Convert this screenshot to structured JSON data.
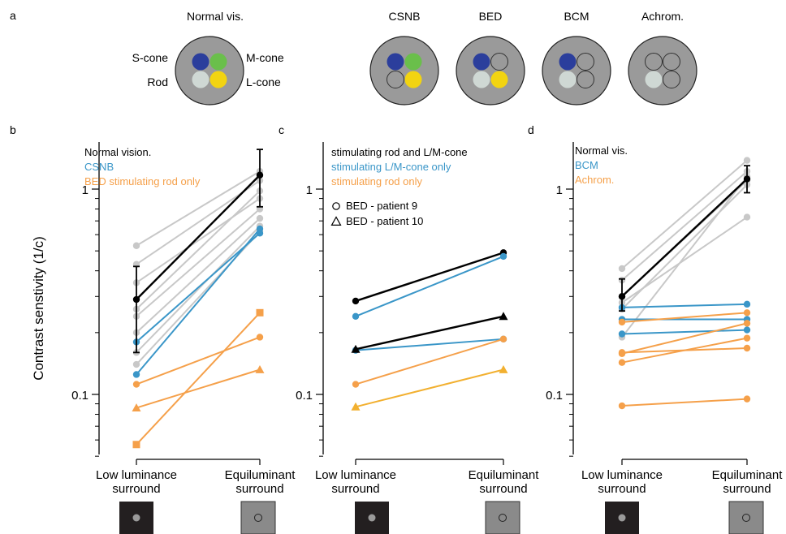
{
  "panel_labels": [
    "a",
    "b",
    "c",
    "d"
  ],
  "diagrams": {
    "normal": {
      "title": "Normal vis.",
      "s_label": "S-cone",
      "m_label": "M-cone",
      "rod_label": "Rod",
      "l_label": "L-cone",
      "cells": [
        "S",
        "M",
        "Rod",
        "L"
      ]
    },
    "others": [
      {
        "title": "CSNB",
        "cells": [
          "S",
          "M",
          "off",
          "L"
        ]
      },
      {
        "title": "BED",
        "cells": [
          "S",
          "off",
          "Rod",
          "L"
        ]
      },
      {
        "title": "BCM",
        "cells": [
          "S",
          "off",
          "Rod",
          "off"
        ]
      },
      {
        "title": "Achrom.",
        "cells": [
          "off",
          "off",
          "Rod",
          "off"
        ]
      }
    ],
    "colors": {
      "S": "#2b3e9c",
      "M": "#6abf4b",
      "Rod": "#cfd8d4",
      "L": "#f2d411",
      "disk": "#9a9a9a",
      "off": "#9a9a9a"
    }
  },
  "ylabel": "Contrast senstivity (1/c)",
  "colors": {
    "normal": "#000000",
    "gray": "#c8c8c8",
    "blue": "#3a96c8",
    "orange": "#f5a04a",
    "yellow": "#f2b030"
  },
  "chart_data": [
    {
      "panel": "b",
      "type": "line",
      "scale": "log",
      "ylim": [
        0.05,
        1.5
      ],
      "yticks": [
        {
          "v": 0.1,
          "label": "0.1"
        },
        {
          "v": 1,
          "label": "1"
        }
      ],
      "categories": [
        "Low luminance\nsurround",
        "Equiluminant\nsurround"
      ],
      "legend": [
        {
          "text": "Normal vision.",
          "color": "#000000"
        },
        {
          "text": "CSNB",
          "color": "#3a96c8"
        },
        {
          "text": "BED stimulating rod only",
          "color": "#f5a04a"
        }
      ],
      "series": [
        {
          "color": "#c8c8c8",
          "marker": "circle",
          "values": [
            0.53,
            1.22
          ]
        },
        {
          "color": "#c8c8c8",
          "marker": "circle",
          "values": [
            0.43,
            1.1
          ]
        },
        {
          "color": "#c8c8c8",
          "marker": "circle",
          "values": [
            0.35,
            0.9
          ]
        },
        {
          "color": "#c8c8c8",
          "marker": "circle",
          "values": [
            0.26,
            0.98
          ]
        },
        {
          "color": "#c8c8c8",
          "marker": "circle",
          "values": [
            0.24,
            0.8
          ]
        },
        {
          "color": "#c8c8c8",
          "marker": "circle",
          "values": [
            0.2,
            0.72
          ]
        },
        {
          "color": "#c8c8c8",
          "marker": "circle",
          "values": [
            0.16,
            0.66
          ]
        },
        {
          "color": "#c8c8c8",
          "marker": "circle",
          "values": [
            0.14,
            0.62
          ]
        },
        {
          "color": "#3a96c8",
          "marker": "circle",
          "values": [
            0.18,
            0.61
          ]
        },
        {
          "color": "#3a96c8",
          "marker": "circle",
          "values": [
            0.125,
            0.64
          ]
        },
        {
          "color": "#f5a04a",
          "marker": "circle",
          "values": [
            0.112,
            0.19
          ]
        },
        {
          "color": "#f5a04a",
          "marker": "triangle",
          "values": [
            0.086,
            0.132
          ]
        },
        {
          "color": "#f5a04a",
          "marker": "square",
          "values": [
            0.057,
            0.25
          ]
        },
        {
          "color": "#000000",
          "marker": "circle",
          "values": [
            0.29,
            1.17
          ],
          "err_lo": [
            0.16,
            0.82
          ],
          "err_hi": [
            0.42,
            1.56
          ]
        }
      ]
    },
    {
      "panel": "c",
      "type": "line",
      "scale": "log",
      "ylim": [
        0.05,
        1.5
      ],
      "yticks": [
        {
          "v": 0.1,
          "label": "0.1"
        },
        {
          "v": 1,
          "label": "1"
        }
      ],
      "categories": [
        "Low luminance\nsurround",
        "Equiluminant\nsurround"
      ],
      "legend": [
        {
          "text": "stimulating rod and L/M-cone",
          "color": "#000000"
        },
        {
          "text": "stimulating L/M-cone only",
          "color": "#3a96c8"
        },
        {
          "text": "stimulating rod only",
          "color": "#f5a04a"
        }
      ],
      "marker_legend": [
        {
          "marker": "circle",
          "text": "BED - patient 9"
        },
        {
          "marker": "triangle",
          "text": "BED - patient 10"
        }
      ],
      "series": [
        {
          "color": "#000000",
          "marker": "circle",
          "values": [
            0.285,
            0.49
          ]
        },
        {
          "color": "#3a96c8",
          "marker": "circle",
          "values": [
            0.24,
            0.47
          ]
        },
        {
          "color": "#3a96c8",
          "marker": "circle",
          "values": [
            0.164,
            0.186
          ]
        },
        {
          "color": "#000000",
          "marker": "triangle",
          "values": [
            0.166,
            0.24
          ]
        },
        {
          "color": "#f5a04a",
          "marker": "circle",
          "values": [
            0.112,
            0.186
          ]
        },
        {
          "color": "#f2b030",
          "marker": "triangle",
          "values": [
            0.087,
            0.132
          ]
        }
      ]
    },
    {
      "panel": "d",
      "type": "line",
      "scale": "log",
      "ylim": [
        0.05,
        1.5
      ],
      "yticks": [
        {
          "v": 0.1,
          "label": "0.1"
        },
        {
          "v": 1,
          "label": "1"
        }
      ],
      "categories": [
        "Low luminance\nsurround",
        "Equiluminant\nsurround"
      ],
      "legend": [
        {
          "text": "Normal vis.",
          "color": "#000000"
        },
        {
          "text": "BCM",
          "color": "#3a96c8"
        },
        {
          "text": "Achrom.",
          "color": "#f5a04a"
        }
      ],
      "series": [
        {
          "color": "#c8c8c8",
          "marker": "circle",
          "values": [
            0.41,
            1.38
          ]
        },
        {
          "color": "#c8c8c8",
          "marker": "circle",
          "values": [
            0.36,
            1.22
          ]
        },
        {
          "color": "#c8c8c8",
          "marker": "circle",
          "values": [
            0.3,
            1.1
          ]
        },
        {
          "color": "#c8c8c8",
          "marker": "circle",
          "values": [
            0.26,
            1.05
          ]
        },
        {
          "color": "#c8c8c8",
          "marker": "circle",
          "values": [
            0.28,
            0.73
          ]
        },
        {
          "color": "#c8c8c8",
          "marker": "circle",
          "values": [
            0.19,
            1.15
          ]
        },
        {
          "color": "#3a96c8",
          "marker": "circle",
          "values": [
            0.265,
            0.275
          ]
        },
        {
          "color": "#3a96c8",
          "marker": "circle",
          "values": [
            0.232,
            0.232
          ]
        },
        {
          "color": "#3a96c8",
          "marker": "circle",
          "values": [
            0.197,
            0.206
          ]
        },
        {
          "color": "#f5a04a",
          "marker": "circle",
          "values": [
            0.225,
            0.25
          ]
        },
        {
          "color": "#f5a04a",
          "marker": "circle",
          "values": [
            0.158,
            0.222
          ]
        },
        {
          "color": "#f5a04a",
          "marker": "circle",
          "values": [
            0.16,
            0.168
          ]
        },
        {
          "color": "#f5a04a",
          "marker": "circle",
          "values": [
            0.143,
            0.188
          ]
        },
        {
          "color": "#f5a04a",
          "marker": "circle",
          "values": [
            0.088,
            0.095
          ]
        },
        {
          "color": "#000000",
          "marker": "circle",
          "values": [
            0.3,
            1.12
          ],
          "err_lo": [
            0.255,
            0.96
          ],
          "err_hi": [
            0.365,
            1.3
          ]
        }
      ]
    }
  ]
}
